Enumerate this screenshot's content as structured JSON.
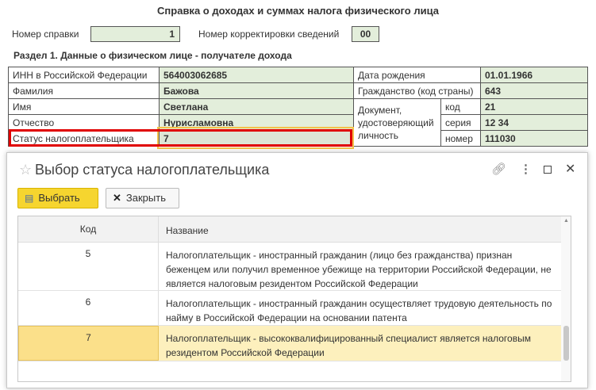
{
  "form": {
    "title": "Справка о доходах и суммах налога физического лица",
    "cert_number_label": "Номер справки",
    "cert_number": "1",
    "correction_label": "Номер корректировки сведений",
    "correction": "00",
    "section_title": "Раздел 1. Данные о физическом лице - получателе дохода",
    "inn_label": "ИНН в Российской Федерации",
    "inn": "564003062685",
    "surname_label": "Фамилия",
    "surname": "Бажова",
    "name_label": "Имя",
    "name": "Светлана",
    "patronymic_label": "Отчество",
    "patronymic": "Нурисламовна",
    "status_label": "Статус налогоплательщика",
    "status": "7",
    "birth_label": "Дата рождения",
    "birth": "01.01.1966",
    "citizenship_label": "Гражданство (код страны)",
    "citizenship": "643",
    "doc_label": "Документ, удостоверяющий личность",
    "doc_code_label": "код",
    "doc_code": "21",
    "doc_series_label": "серия",
    "doc_series": "12 34",
    "doc_number_label": "номер",
    "doc_number": "111030"
  },
  "dialog": {
    "title": "Выбор статуса налогоплательщика",
    "select_label": "Выбрать",
    "close_label": "Закрыть",
    "columns": [
      "Код",
      "Название"
    ],
    "rows": [
      {
        "code": "5",
        "name": "Налогоплательщик - иностранный гражданин (лицо без гражданства) признан беженцем или получил временное убежище на территории Российской Федерации, не является налоговым резидентом Российской Федерации"
      },
      {
        "code": "6",
        "name": "Налогоплательщик - иностранный гражданин осуществляет трудовую деятельность по найму в Российской Федерации на основании патента"
      },
      {
        "code": "7",
        "name": "Налогоплательщик - высококвалифицированный специалист является налоговым резидентом Российской Федерации",
        "selected": true
      }
    ]
  },
  "colors": {
    "field_bg": "#e3eedb",
    "highlight_red": "#e00000",
    "selected_row": "#fdf0bd",
    "button_yellow": "#f6d52f"
  }
}
